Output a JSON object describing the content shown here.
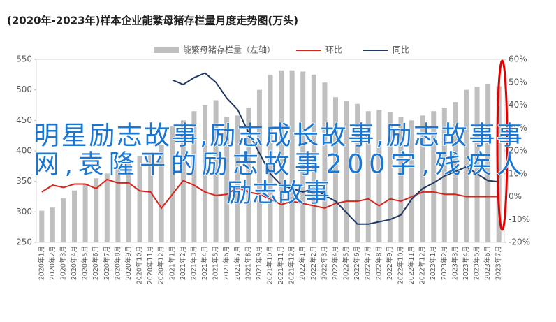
{
  "chart_data": {
    "type": "bar_line",
    "title": "(2020年-2023年)样本企业能繁母猪存栏量月度走势图(万头)",
    "categories": [
      "2020年1月",
      "2020年2月",
      "2020年3月",
      "2020年4月",
      "2020年5月",
      "2020年6月",
      "2020年7月",
      "2020年8月",
      "2020年9月",
      "2020年10月",
      "2020年11月",
      "2020年12月",
      "2021年1月",
      "2021年2月",
      "2021年3月",
      "2021年4月",
      "2021年5月",
      "2021年6月",
      "2021年7月",
      "2021年8月",
      "2021年9月",
      "2021年10月",
      "2021年11月",
      "2021年12月",
      "2022年1月",
      "2022年2月",
      "2022年3月",
      "2022年4月",
      "2022年5月",
      "2022年6月",
      "2022年7月",
      "2022年8月",
      "2022年9月",
      "2022年10月",
      "2022年11月",
      "2022年12月",
      "2023年1月",
      "2023年2月",
      "2023年3月",
      "2023年4月",
      "2023年5月",
      "2023年6月",
      "2023年7月"
    ],
    "series": [
      {
        "name": "能繁母猪存栏量（左轴）",
        "color": "#bfbfbf",
        "kind": "bar",
        "values": [
          302,
          307,
          322,
          335,
          345,
          355,
          363,
          372,
          383,
          392,
          398,
          410,
          440,
          450,
          465,
          475,
          483,
          456,
          458,
          470,
          500,
          525,
          532,
          532,
          530,
          525,
          512,
          488,
          482,
          477,
          465,
          467,
          464,
          455,
          450,
          458,
          465,
          470,
          480,
          500,
          505,
          510,
          506
        ]
      },
      {
        "name": "环比",
        "color": "#d9241c",
        "kind": "line",
        "axis": "y2",
        "values": [
          2,
          5,
          4,
          5.5,
          5.5,
          3.5,
          7.5,
          6,
          6,
          2.5,
          2,
          -5,
          1,
          7,
          5,
          2,
          0.5,
          1,
          4,
          2,
          1,
          -1,
          -3.5,
          -2,
          -3,
          -4,
          -5,
          -3,
          -2,
          -2,
          -1,
          -4,
          -1,
          -2,
          0,
          2,
          2,
          1,
          1,
          0,
          0,
          0,
          0
        ]
      },
      {
        "name": "同比",
        "color": "#1f3864",
        "kind": "line",
        "axis": "y2",
        "values": [
          null,
          null,
          null,
          null,
          null,
          null,
          null,
          null,
          null,
          null,
          null,
          null,
          51,
          49,
          52,
          54,
          50,
          43,
          38,
          28,
          19,
          10,
          5,
          3.5,
          2,
          3.5,
          0.5,
          -2,
          -7,
          -12,
          -12,
          -11,
          -10,
          -8,
          -1,
          3.5,
          6,
          9,
          11,
          13,
          10,
          7,
          6.5
        ]
      }
    ],
    "ylim": [
      250,
      550
    ],
    "yticks": [
      250,
      300,
      350,
      400,
      450,
      500,
      550
    ],
    "y2lim": [
      -20,
      60
    ],
    "y2ticks": [
      {
        "value": -20,
        "label": "-20%"
      },
      {
        "value": -10,
        "label": "-10%"
      },
      {
        "value": 0,
        "label": "0%"
      },
      {
        "value": 10,
        "label": "10%"
      },
      {
        "value": 20,
        "label": "20%"
      },
      {
        "value": 30,
        "label": "30%"
      },
      {
        "value": 40,
        "label": "40%"
      },
      {
        "value": 50,
        "label": "50%"
      },
      {
        "value": 60,
        "label": "60%"
      }
    ]
  },
  "overlay": {
    "lines": [
      "明星励志故事,励志成长故事,励志故事事",
      "网,袁隆平的励志故事200字,残疾人",
      "励志故事"
    ]
  }
}
